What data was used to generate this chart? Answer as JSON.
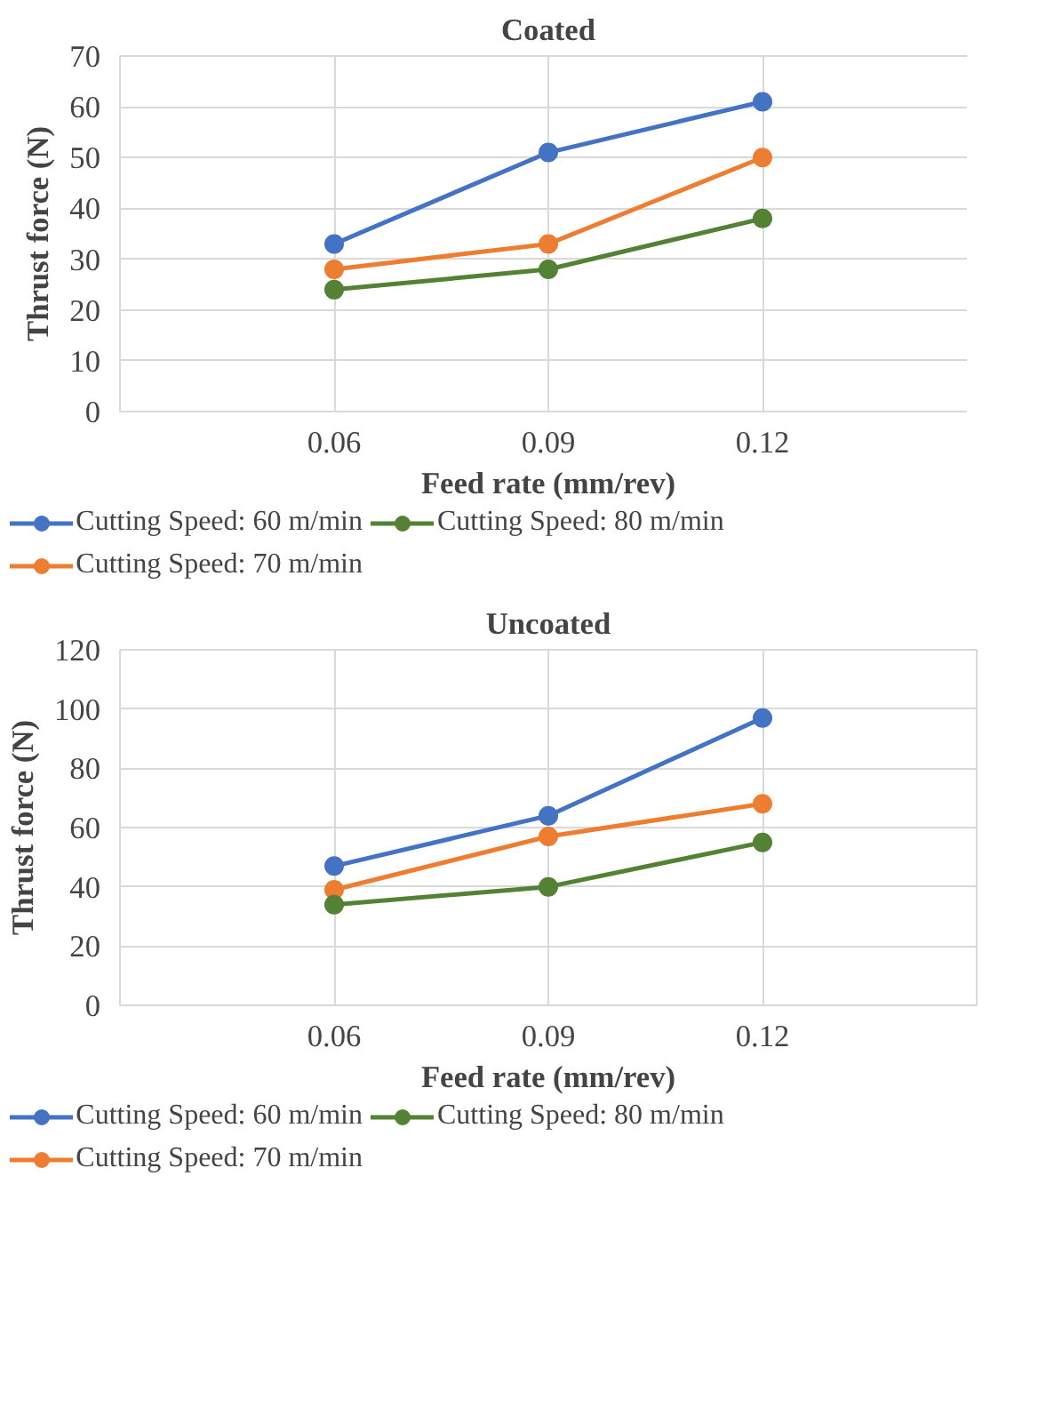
{
  "chart_data": [
    {
      "type": "line",
      "title": "Coated",
      "xlabel": "Feed rate (mm/rev)",
      "ylabel": "Thrust force (N)",
      "categories": [
        "0.06",
        "0.09",
        "0.12"
      ],
      "ylim": [
        0,
        70
      ],
      "yticks": [
        0,
        10,
        20,
        30,
        40,
        50,
        60,
        70
      ],
      "grid": true,
      "legend": "bottom",
      "marker": "circle",
      "line_style": "solid",
      "series": [
        {
          "name": "Cutting Speed: 60 m/min",
          "color": "#4472c4",
          "values": [
            33,
            51,
            61
          ]
        },
        {
          "name": "Cutting Speed: 70 m/min",
          "color": "#ed7d31",
          "values": [
            28,
            33,
            50
          ]
        },
        {
          "name": "Cutting Speed: 80 m/min",
          "color": "#548235",
          "values": [
            24,
            28,
            38
          ]
        }
      ]
    },
    {
      "type": "line",
      "title": "Uncoated",
      "xlabel": "Feed rate (mm/rev)",
      "ylabel": "Thrust force (N)",
      "categories": [
        "0.06",
        "0.09",
        "0.12"
      ],
      "ylim": [
        0,
        120
      ],
      "yticks": [
        0,
        20,
        40,
        60,
        80,
        100,
        120
      ],
      "grid": true,
      "legend": "bottom",
      "marker": "circle",
      "line_style": "solid",
      "series": [
        {
          "name": "Cutting Speed: 60 m/min",
          "color": "#4472c4",
          "values": [
            47,
            64,
            97
          ]
        },
        {
          "name": "Cutting Speed: 70 m/min",
          "color": "#ed7d31",
          "values": [
            39,
            57,
            68
          ]
        },
        {
          "name": "Cutting Speed: 80 m/min",
          "color": "#548235",
          "values": [
            34,
            40,
            55
          ]
        }
      ]
    }
  ]
}
